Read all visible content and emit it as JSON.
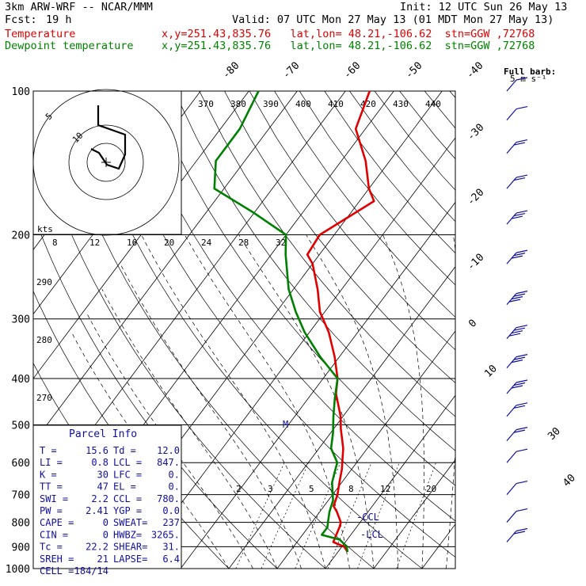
{
  "header": {
    "model": "3km ARW-WRF -- NCAR/MMM",
    "init": "Init: 12 UTC Sun 26 May 13",
    "fcst_label": "Fcst:",
    "fcst_value": "19 h",
    "valid": "Valid: 07 UTC Mon 27 May 13 (01 MDT Mon 27 May 13)",
    "temp_label": "Temperature",
    "temp_loc": "x,y=251.43,835.76   lat,lon= 48.21,-106.62  stn=GGW ,72768",
    "dew_label": "Dewpoint temperature",
    "dew_loc": "x,y=251.43,835.76   lat,lon= 48.21,-106.62  stn=GGW ,72768",
    "barb_title": "Full barb:",
    "barb_unit": "5 m s⁻¹"
  },
  "colors": {
    "temperature": "#e00000",
    "dewpoint": "#008000",
    "stats": "#1010a0",
    "hodo": "#000000"
  },
  "chart_data": {
    "type": "line",
    "title": "",
    "y_axis": {
      "label": "",
      "scale": "log",
      "range": [
        1000,
        100
      ],
      "ticks": [
        100,
        200,
        300,
        400,
        500,
        600,
        700,
        800,
        900,
        1000
      ]
    },
    "isotherm_labels": [
      -80,
      -70,
      -60,
      -50,
      -40,
      -30,
      -20,
      -10,
      0,
      10,
      30,
      40
    ],
    "theta_labels": [
      370,
      380,
      390,
      400,
      410,
      420,
      430,
      440
    ],
    "theta_e_labels": [
      290,
      280,
      270
    ],
    "mixing_ratio_labels": [
      2,
      3,
      5,
      8,
      12,
      20
    ],
    "hodograph": {
      "speed_unit": "kts",
      "rings": [
        5,
        10
      ],
      "speed_ticks": [
        8,
        12,
        16,
        20,
        24,
        28,
        32
      ]
    },
    "annotations": [
      "M",
      "-CCL",
      "-LCL"
    ],
    "series": [
      {
        "name": "Temperature",
        "points": [
          [
            923,
            12.0
          ],
          [
            900,
            10.5
          ],
          [
            880,
            7.5
          ],
          [
            850,
            7.0
          ],
          [
            820,
            6.5
          ],
          [
            800,
            6.0
          ],
          [
            760,
            3.5
          ],
          [
            740,
            2.0
          ],
          [
            700,
            1.0
          ],
          [
            660,
            -0.5
          ],
          [
            620,
            -2.0
          ],
          [
            560,
            -5.0
          ],
          [
            510,
            -8.5
          ],
          [
            480,
            -10.5
          ],
          [
            430,
            -15.0
          ],
          [
            400,
            -17.0
          ],
          [
            360,
            -21.0
          ],
          [
            320,
            -26.0
          ],
          [
            290,
            -31.0
          ],
          [
            260,
            -35.0
          ],
          [
            230,
            -40.0
          ],
          [
            220,
            -42.5
          ],
          [
            200,
            -43.0
          ],
          [
            170,
            -37.0
          ],
          [
            160,
            -40.0
          ],
          [
            140,
            -45.0
          ],
          [
            120,
            -52.0
          ],
          [
            100,
            -55.0
          ]
        ]
      },
      {
        "name": "Dewpoint temperature",
        "points": [
          [
            923,
            12.0
          ],
          [
            900,
            11.0
          ],
          [
            870,
            8.5
          ],
          [
            850,
            4.0
          ],
          [
            820,
            4.0
          ],
          [
            790,
            3.0
          ],
          [
            760,
            2.0
          ],
          [
            740,
            1.5
          ],
          [
            720,
            1.0
          ],
          [
            700,
            0.0
          ],
          [
            660,
            -2.0
          ],
          [
            630,
            -3.0
          ],
          [
            600,
            -4.0
          ],
          [
            560,
            -7.5
          ],
          [
            520,
            -9.5
          ],
          [
            480,
            -12.0
          ],
          [
            440,
            -14.5
          ],
          [
            400,
            -17.0
          ],
          [
            360,
            -24.0
          ],
          [
            320,
            -31.0
          ],
          [
            290,
            -36.0
          ],
          [
            260,
            -41.0
          ],
          [
            220,
            -47.0
          ],
          [
            200,
            -50.0
          ],
          [
            180,
            -60.0
          ],
          [
            160,
            -72.0
          ],
          [
            140,
            -76.0
          ],
          [
            120,
            -76.0
          ],
          [
            100,
            -78.0
          ]
        ]
      }
    ],
    "wind_barbs": [
      {
        "p": 100,
        "n": 1
      },
      {
        "p": 115,
        "n": 1
      },
      {
        "p": 135,
        "n": 2
      },
      {
        "p": 160,
        "n": 2
      },
      {
        "p": 190,
        "n": 3
      },
      {
        "p": 230,
        "n": 3
      },
      {
        "p": 280,
        "n": 4
      },
      {
        "p": 330,
        "n": 4
      },
      {
        "p": 380,
        "n": 3
      },
      {
        "p": 430,
        "n": 3
      },
      {
        "p": 480,
        "n": 2
      },
      {
        "p": 540,
        "n": 2
      },
      {
        "p": 600,
        "n": 1
      },
      {
        "p": 700,
        "n": 1
      },
      {
        "p": 800,
        "n": 1
      },
      {
        "p": 880,
        "n": 2
      }
    ]
  },
  "parcel_info": {
    "title": "Parcel Info",
    "rows": [
      [
        "T   =",
        "15.6",
        "Td  =",
        "12.0"
      ],
      [
        "LI  =",
        "0.8",
        "LCL =",
        "847."
      ],
      [
        "K   =",
        "30",
        "LFC =",
        "0."
      ],
      [
        "TT  =",
        "47",
        "EL  =",
        "0."
      ],
      [
        "SWI =",
        "2.2",
        "CCL =",
        "780."
      ],
      [
        "PW  =",
        "2.41",
        "YGP =",
        "0.0"
      ],
      [
        "CAPE =",
        "0",
        "SWEAT=",
        "237"
      ],
      [
        "CIN =",
        "0",
        "HWBZ=",
        "3265."
      ],
      [
        "Tc  =",
        "22.2",
        "SHEAR=",
        "31."
      ],
      [
        "SREH =",
        "21",
        "LAPSE=",
        "6.4"
      ],
      [
        "CELL =",
        "184/14",
        "",
        ""
      ]
    ]
  }
}
